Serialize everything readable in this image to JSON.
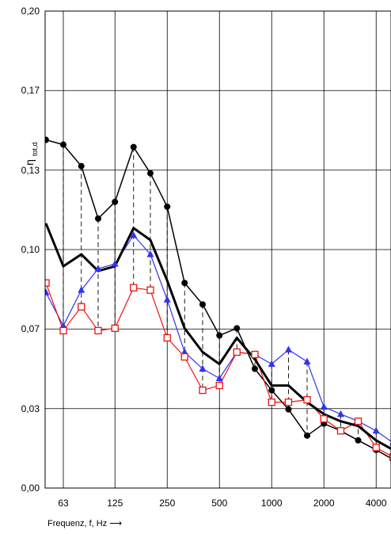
{
  "chart_data": {
    "type": "line",
    "title": "",
    "xlabel": "Frequenz,  f, Hz ⟶",
    "ylabel_main": "η",
    "ylabel_sub": "tot,d",
    "x_scale": "log (third-octave bands)",
    "xlim": [
      56,
      5000
    ],
    "ylim": [
      0.0,
      0.2
    ],
    "grid": true,
    "x_ticks": [
      {
        "value": 63,
        "label": "63"
      },
      {
        "value": 125,
        "label": "125"
      },
      {
        "value": 250,
        "label": "250"
      },
      {
        "value": 500,
        "label": "500"
      },
      {
        "value": 1000,
        "label": "1000"
      },
      {
        "value": 2000,
        "label": "2000"
      },
      {
        "value": 4000,
        "label": "4000"
      }
    ],
    "y_ticks": [
      {
        "value": 0.0,
        "label": "0,00"
      },
      {
        "value": 0.0333,
        "label": "0,03"
      },
      {
        "value": 0.0667,
        "label": "0,07"
      },
      {
        "value": 0.1,
        "label": "0,10"
      },
      {
        "value": 0.1333,
        "label": "0,13"
      },
      {
        "value": 0.1667,
        "label": "0,17"
      },
      {
        "value": 0.2,
        "label": "0,20"
      }
    ],
    "x": [
      50,
      63,
      80,
      100,
      125,
      160,
      200,
      250,
      315,
      400,
      500,
      630,
      800,
      1000,
      1250,
      1600,
      2000,
      2500,
      3150,
      4000,
      5000
    ],
    "series": [
      {
        "name": "",
        "color": "#000000",
        "marker": "circle",
        "line_width": 1.5,
        "values": [
          0.146,
          0.144,
          0.135,
          0.113,
          0.12,
          0.143,
          0.132,
          0.118,
          0.086,
          0.077,
          0.064,
          0.067,
          0.05,
          0.041,
          0.033,
          0.022,
          0.027,
          0.024,
          0.02,
          0.016,
          0.012
        ]
      },
      {
        "name": "",
        "color": "#3333ee",
        "marker": "triangle",
        "line_width": 1.2,
        "values": [
          0.082,
          0.068,
          0.083,
          0.092,
          0.094,
          0.106,
          0.098,
          0.079,
          0.057,
          0.05,
          0.046,
          0.057,
          0.056,
          0.052,
          0.058,
          0.053,
          0.034,
          0.031,
          0.028,
          0.024,
          0.019
        ]
      },
      {
        "name": "",
        "color": "#ee1111",
        "marker": "square",
        "line_width": 1.2,
        "values": [
          0.086,
          0.066,
          0.076,
          0.066,
          0.067,
          0.084,
          0.083,
          0.063,
          0.055,
          0.041,
          0.043,
          0.057,
          0.056,
          0.036,
          0.036,
          0.037,
          0.029,
          0.024,
          0.028,
          0.017,
          0.013
        ]
      },
      {
        "name": "",
        "color": "#000000",
        "marker": "none",
        "line_width": 3,
        "values": [
          0.111,
          0.093,
          0.098,
          0.091,
          0.093,
          0.109,
          0.104,
          0.087,
          0.067,
          0.057,
          0.052,
          0.063,
          0.054,
          0.043,
          0.043,
          0.036,
          0.031,
          0.028,
          0.026,
          0.02,
          0.016
        ]
      }
    ],
    "dashed_connectors": "vertical dashed lines at each band between the highest and lowest curve values"
  }
}
